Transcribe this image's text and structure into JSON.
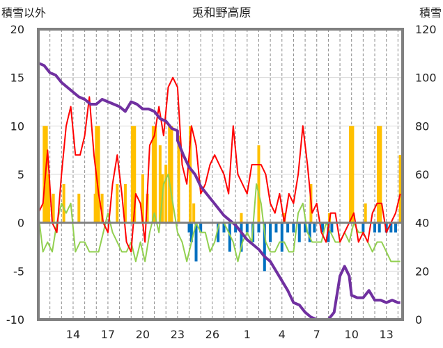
{
  "chart_data": {
    "type": "line",
    "title": "兎和野高原",
    "ylabel_left": "積雪以外",
    "ylabel_right": "積雪",
    "ylim_left": [
      -10,
      20
    ],
    "ylim_right": [
      0,
      120
    ],
    "yticks_left": [
      "-10",
      "-5",
      "0",
      "5",
      "10",
      "15",
      "20"
    ],
    "yticks_right": [
      "0",
      "20",
      "40",
      "60",
      "80",
      "100",
      "120"
    ],
    "xticks": [
      {
        "label": "14",
        "day": 3
      },
      {
        "label": "17",
        "day": 6
      },
      {
        "label": "20",
        "day": 9
      },
      {
        "label": "23",
        "day": 12
      },
      {
        "label": "26",
        "day": 15
      },
      {
        "label": "1",
        "day": 18
      },
      {
        "label": "4",
        "day": 21
      },
      {
        "label": "7",
        "day": 24
      },
      {
        "label": "10",
        "day": 27
      },
      {
        "label": "13",
        "day": 30
      }
    ],
    "x_range_days": [
      0,
      31.4
    ],
    "colors": {
      "snow_depth": "#7030a0",
      "temp_max": "#ff0000",
      "temp_min": "#92d050",
      "snowfall": "#ffc000",
      "snow_change": "#0070c0",
      "axis": "#808080"
    },
    "series": [
      {
        "key": "snow_depth",
        "axis": "right",
        "points": [
          [
            0,
            106
          ],
          [
            0.5,
            105
          ],
          [
            1,
            102
          ],
          [
            1.5,
            101
          ],
          [
            2,
            98
          ],
          [
            2.5,
            96
          ],
          [
            3,
            94
          ],
          [
            3.5,
            92
          ],
          [
            4,
            91
          ],
          [
            4.5,
            89
          ],
          [
            5,
            89
          ],
          [
            5.5,
            91
          ],
          [
            6,
            90
          ],
          [
            6.5,
            89
          ],
          [
            7,
            88
          ],
          [
            7.5,
            86
          ],
          [
            8,
            90
          ],
          [
            8.5,
            89
          ],
          [
            9,
            87
          ],
          [
            9.5,
            87
          ],
          [
            10,
            86
          ],
          [
            10.5,
            83
          ],
          [
            11,
            82
          ],
          [
            11.5,
            79
          ],
          [
            12,
            78
          ],
          [
            12,
            74
          ],
          [
            12.5,
            68
          ],
          [
            13,
            63
          ],
          [
            13.5,
            60
          ],
          [
            14,
            55
          ],
          [
            14.5,
            52
          ],
          [
            15,
            49
          ],
          [
            15.5,
            46
          ],
          [
            16,
            43
          ],
          [
            16.5,
            41
          ],
          [
            17,
            39
          ],
          [
            17.5,
            36
          ],
          [
            18,
            33
          ],
          [
            18.5,
            31
          ],
          [
            19,
            29
          ],
          [
            19.5,
            26
          ],
          [
            20,
            24
          ],
          [
            20.5,
            20
          ],
          [
            21,
            16
          ],
          [
            21.5,
            12
          ],
          [
            22,
            7
          ],
          [
            22.5,
            6
          ],
          [
            23,
            3
          ],
          [
            23.5,
            1
          ],
          [
            24,
            0
          ],
          [
            24.5,
            0
          ],
          [
            25,
            0
          ],
          [
            25.5,
            3
          ],
          [
            26,
            18
          ],
          [
            26.4,
            22
          ],
          [
            26.8,
            18
          ],
          [
            27,
            10
          ],
          [
            27.5,
            9
          ],
          [
            28,
            9
          ],
          [
            28.5,
            12
          ],
          [
            29,
            8
          ],
          [
            29.5,
            8
          ],
          [
            30,
            7
          ],
          [
            30.5,
            8
          ],
          [
            31,
            7
          ],
          [
            31.2,
            7
          ]
        ]
      },
      {
        "key": "temp_max",
        "axis": "left",
        "points": [
          [
            0,
            1
          ],
          [
            0.4,
            2
          ],
          [
            0.8,
            7.5
          ],
          [
            1.2,
            0
          ],
          [
            1.6,
            -1
          ],
          [
            2,
            5
          ],
          [
            2.4,
            10
          ],
          [
            2.8,
            12
          ],
          [
            3.2,
            7
          ],
          [
            3.6,
            7
          ],
          [
            4,
            9
          ],
          [
            4.4,
            13
          ],
          [
            4.8,
            7
          ],
          [
            5.2,
            3
          ],
          [
            5.6,
            0
          ],
          [
            6,
            -1
          ],
          [
            6.4,
            4
          ],
          [
            6.8,
            7
          ],
          [
            7.2,
            3
          ],
          [
            7.6,
            -2
          ],
          [
            8,
            -3
          ],
          [
            8.4,
            3
          ],
          [
            8.8,
            2
          ],
          [
            9.2,
            -2
          ],
          [
            9.6,
            8
          ],
          [
            10,
            9
          ],
          [
            10.4,
            12
          ],
          [
            10.8,
            9
          ],
          [
            11.2,
            14
          ],
          [
            11.6,
            15
          ],
          [
            12,
            14
          ],
          [
            12.4,
            6
          ],
          [
            12.8,
            4
          ],
          [
            13.2,
            10
          ],
          [
            13.6,
            8
          ],
          [
            14,
            3
          ],
          [
            14.4,
            4
          ],
          [
            14.8,
            6
          ],
          [
            15.2,
            7
          ],
          [
            15.6,
            6
          ],
          [
            16,
            5
          ],
          [
            16.4,
            3
          ],
          [
            16.8,
            10
          ],
          [
            17.2,
            5
          ],
          [
            17.6,
            4
          ],
          [
            18,
            3
          ],
          [
            18.4,
            6
          ],
          [
            18.8,
            6
          ],
          [
            19.2,
            6
          ],
          [
            19.6,
            5
          ],
          [
            20,
            2
          ],
          [
            20.4,
            1
          ],
          [
            20.8,
            3
          ],
          [
            21.2,
            0
          ],
          [
            21.6,
            3
          ],
          [
            22,
            2
          ],
          [
            22.4,
            5
          ],
          [
            22.8,
            10
          ],
          [
            23.2,
            6
          ],
          [
            23.6,
            1
          ],
          [
            24,
            2
          ],
          [
            24.4,
            -1
          ],
          [
            24.8,
            -2
          ],
          [
            25.2,
            1
          ],
          [
            25.6,
            1
          ],
          [
            26,
            -2
          ],
          [
            26.4,
            -1
          ],
          [
            26.8,
            0
          ],
          [
            27.2,
            1
          ],
          [
            27.6,
            -2
          ],
          [
            28,
            -1
          ],
          [
            28.4,
            -2
          ],
          [
            28.8,
            1
          ],
          [
            29.2,
            2
          ],
          [
            29.6,
            2
          ],
          [
            30,
            -1
          ],
          [
            30.4,
            0
          ],
          [
            30.8,
            1
          ],
          [
            31.2,
            3
          ]
        ]
      },
      {
        "key": "temp_min",
        "axis": "left",
        "points": [
          [
            0,
            1
          ],
          [
            0.4,
            -3
          ],
          [
            0.8,
            -2
          ],
          [
            1.2,
            -3
          ],
          [
            1.6,
            0
          ],
          [
            2,
            2
          ],
          [
            2.4,
            1
          ],
          [
            2.8,
            2
          ],
          [
            3.2,
            -3
          ],
          [
            3.6,
            -2
          ],
          [
            4,
            -2
          ],
          [
            4.4,
            -3
          ],
          [
            4.8,
            -3
          ],
          [
            5.2,
            -3
          ],
          [
            5.6,
            -1
          ],
          [
            6,
            1
          ],
          [
            6.4,
            -1
          ],
          [
            6.8,
            -2
          ],
          [
            7.2,
            -3
          ],
          [
            7.6,
            -3
          ],
          [
            8,
            -2
          ],
          [
            8.4,
            -4
          ],
          [
            8.8,
            -2
          ],
          [
            9.2,
            -4
          ],
          [
            9.6,
            -1
          ],
          [
            10,
            1
          ],
          [
            10.4,
            -1
          ],
          [
            10.8,
            4
          ],
          [
            11.2,
            5
          ],
          [
            11.6,
            2
          ],
          [
            12,
            -1
          ],
          [
            12.4,
            -2
          ],
          [
            12.8,
            -4
          ],
          [
            13.2,
            -2
          ],
          [
            13.6,
            0
          ],
          [
            14,
            -1
          ],
          [
            14.4,
            -1
          ],
          [
            14.8,
            -3
          ],
          [
            15.2,
            -2
          ],
          [
            15.6,
            0
          ],
          [
            16,
            0
          ],
          [
            16.4,
            -1
          ],
          [
            16.8,
            -2
          ],
          [
            17.2,
            -4
          ],
          [
            17.6,
            -2
          ],
          [
            18,
            -1
          ],
          [
            18.4,
            -2
          ],
          [
            18.8,
            4
          ],
          [
            19.2,
            2
          ],
          [
            19.6,
            -2
          ],
          [
            20,
            -3
          ],
          [
            20.4,
            -3
          ],
          [
            20.8,
            -2
          ],
          [
            21.2,
            -2
          ],
          [
            21.6,
            -3
          ],
          [
            22,
            -3
          ],
          [
            22.4,
            1
          ],
          [
            22.8,
            2
          ],
          [
            23.2,
            -1
          ],
          [
            23.6,
            -2
          ],
          [
            24,
            -2
          ],
          [
            24.4,
            -2
          ],
          [
            24.8,
            0
          ],
          [
            25.2,
            -1
          ],
          [
            25.6,
            -2
          ],
          [
            26,
            -2
          ],
          [
            26.4,
            -1
          ],
          [
            26.8,
            -2
          ],
          [
            27.2,
            0
          ],
          [
            27.6,
            -1
          ],
          [
            28,
            -1
          ],
          [
            28.4,
            -2
          ],
          [
            28.8,
            -3
          ],
          [
            29.2,
            -2
          ],
          [
            29.6,
            -2
          ],
          [
            30,
            -3
          ],
          [
            30.4,
            -4
          ],
          [
            30.8,
            -4
          ],
          [
            31.2,
            -4
          ]
        ]
      },
      {
        "key": "snowfall",
        "axis": "left",
        "bars": [
          [
            0.5,
            10
          ],
          [
            0.7,
            10
          ],
          [
            0.9,
            5
          ],
          [
            1.3,
            3
          ],
          [
            2.2,
            4
          ],
          [
            3.5,
            3
          ],
          [
            4.9,
            3
          ],
          [
            5,
            10
          ],
          [
            5.2,
            10
          ],
          [
            5.5,
            3
          ],
          [
            6.8,
            4
          ],
          [
            7.5,
            4
          ],
          [
            8.1,
            10
          ],
          [
            8.3,
            10
          ],
          [
            9,
            5
          ],
          [
            9.4,
            3
          ],
          [
            9.9,
            10
          ],
          [
            10.1,
            10
          ],
          [
            10.5,
            8
          ],
          [
            10.7,
            5
          ],
          [
            11,
            6
          ],
          [
            11.3,
            10
          ],
          [
            11.5,
            10
          ],
          [
            12.1,
            9
          ],
          [
            13.1,
            10
          ],
          [
            13.4,
            2
          ],
          [
            17.5,
            1
          ],
          [
            19,
            8
          ],
          [
            21.2,
            1
          ],
          [
            23.5,
            4
          ],
          [
            25.1,
            1
          ],
          [
            26.9,
            10
          ],
          [
            27.1,
            10
          ],
          [
            28.2,
            2
          ],
          [
            29.3,
            10
          ],
          [
            29.5,
            10
          ],
          [
            31.2,
            7
          ]
        ]
      },
      {
        "key": "snow_change",
        "axis": "left",
        "bars": [
          [
            13,
            -1
          ],
          [
            13.2,
            -2
          ],
          [
            13.6,
            -4
          ],
          [
            14,
            -1
          ],
          [
            15.5,
            -2
          ],
          [
            16,
            -1
          ],
          [
            16.5,
            -3
          ],
          [
            17,
            -1
          ],
          [
            17.5,
            -3
          ],
          [
            18,
            -1
          ],
          [
            18.5,
            -2
          ],
          [
            19,
            -1
          ],
          [
            19.5,
            -5
          ],
          [
            20,
            -2
          ],
          [
            20.5,
            -1
          ],
          [
            21,
            -3
          ],
          [
            21.5,
            -1
          ],
          [
            22,
            -1
          ],
          [
            22.5,
            -2
          ],
          [
            23,
            -1
          ],
          [
            23.4,
            -2
          ],
          [
            23.8,
            -1
          ],
          [
            24.5,
            -1
          ],
          [
            25,
            -2
          ],
          [
            25.3,
            -1
          ],
          [
            28,
            -1
          ],
          [
            29,
            -1
          ],
          [
            29.4,
            -1
          ],
          [
            30,
            -1
          ],
          [
            30.4,
            -1
          ],
          [
            30.8,
            -1
          ]
        ]
      }
    ]
  }
}
